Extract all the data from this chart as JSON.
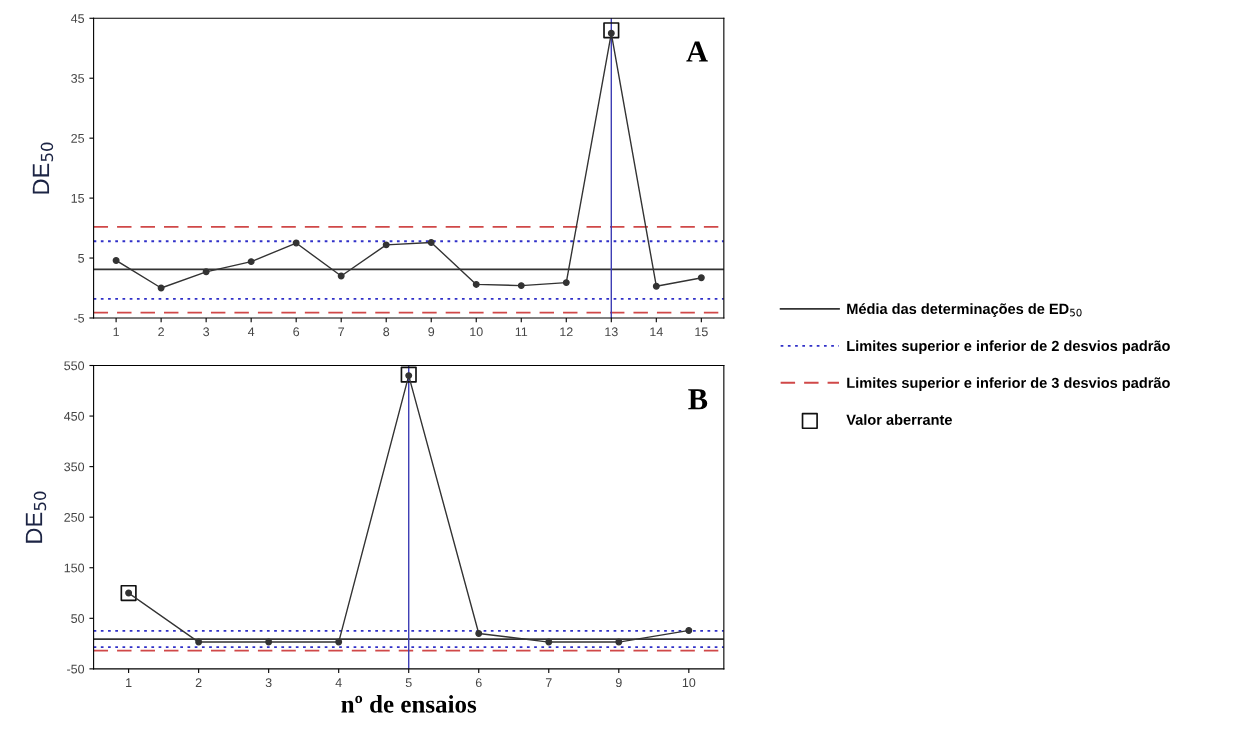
{
  "chart_data": [
    {
      "type": "line",
      "categories": [
        "1",
        "2",
        "3",
        "4",
        "6",
        "7",
        "8",
        "9",
        "10",
        "11",
        "12",
        "13",
        "14",
        "15"
      ],
      "ylabel": "DE$_{50}$",
      "ylim": [
        -5,
        45
      ],
      "yticks": [
        -5,
        5,
        15,
        25,
        35,
        45
      ],
      "grid": false,
      "legend": "right",
      "annotations": [
        "A"
      ],
      "series": [
        {
          "type": "line",
          "color": "#333333",
          "marker": "circle",
          "values": [
            4.6,
            0,
            2.7,
            4.4,
            7.5,
            2.0,
            7.2,
            7.6,
            0.6,
            0.4,
            0.9,
            42.5,
            0.3,
            1.7
          ]
        },
        {
          "type": "scatter",
          "name": "Valor aberrante",
          "color": "#111111",
          "marker": "square",
          "x": [
            "13"
          ],
          "values": [
            43
          ]
        }
      ],
      "ref_lines": [
        {
          "axis": "y",
          "value": 3.1,
          "label": "Média das determinações de ED$_{50}$",
          "color": "#333333",
          "line_style": "solid"
        },
        {
          "axis": "y",
          "value": 7.8,
          "label": "Limites superior e inferior de 2 desvios padrão",
          "color": "#3030c8",
          "line_style": "dotted"
        },
        {
          "axis": "y",
          "value": -1.8,
          "color": "#3030c8",
          "line_style": "dotted"
        },
        {
          "axis": "y",
          "value": 10.2,
          "label": "Limites superior e inferior de 3 desvios padrão",
          "color": "#d04848",
          "line_style": "dashed"
        },
        {
          "axis": "y",
          "value": -4.1,
          "color": "#d04848",
          "line_style": "dashed"
        },
        {
          "axis": "x",
          "value": "13",
          "color": "#3c3cb4",
          "line_style": "solid"
        }
      ]
    },
    {
      "type": "line",
      "categories": [
        "1",
        "2",
        "3",
        "4",
        "5",
        "6",
        "7",
        "9",
        "10"
      ],
      "xlabel": "nº de ensaios",
      "ylabel": "DE$_{50}$",
      "ylim": [
        -50,
        550
      ],
      "yticks": [
        -50,
        50,
        150,
        250,
        350,
        450,
        550
      ],
      "grid": false,
      "annotations": [
        "B"
      ],
      "series": [
        {
          "type": "line",
          "color": "#333333",
          "marker": "circle",
          "values": [
            100,
            3,
            3,
            3,
            530,
            20,
            3,
            3,
            26
          ]
        },
        {
          "type": "scatter",
          "color": "#111111",
          "marker": "square",
          "x": [
            "1",
            "5"
          ],
          "values": [
            100,
            532
          ]
        }
      ],
      "ref_lines": [
        {
          "axis": "y",
          "value": 9,
          "color": "#333333",
          "line_style": "solid"
        },
        {
          "axis": "y",
          "value": 25,
          "color": "#3030c8",
          "line_style": "dotted"
        },
        {
          "axis": "y",
          "value": -7,
          "color": "#3030c8",
          "line_style": "dotted"
        },
        {
          "axis": "y",
          "value": -14,
          "color": "#d04848",
          "line_style": "dashed"
        },
        {
          "axis": "x",
          "value": "5",
          "color": "#3c3cb4",
          "line_style": "solid"
        }
      ]
    }
  ]
}
